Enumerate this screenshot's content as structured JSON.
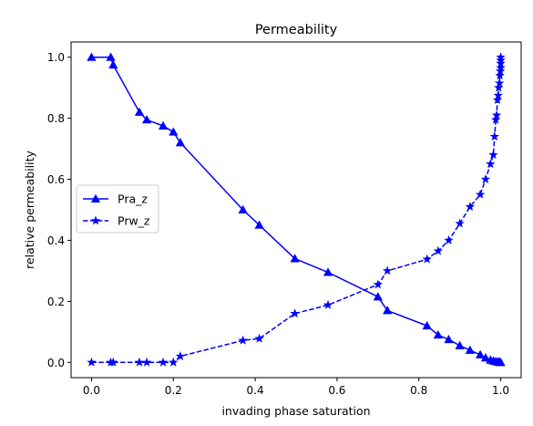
{
  "chart_data": {
    "type": "line",
    "title": "Permeability",
    "xlabel": "invading phase saturation",
    "ylabel": "relative permeability",
    "xlim": [
      -0.05,
      1.05
    ],
    "ylim": [
      -0.05,
      1.05
    ],
    "xticks": [
      "0.0",
      "0.2",
      "0.4",
      "0.6",
      "0.8",
      "1.0"
    ],
    "yticks": [
      "0.0",
      "0.2",
      "0.4",
      "0.6",
      "0.8",
      "1.0"
    ],
    "grid": false,
    "legend_position": "center-left",
    "series": [
      {
        "name": "Pra_z",
        "color": "#0000ff",
        "linestyle": "solid",
        "marker": "triangle-up",
        "x": [
          0.0,
          0.047,
          0.053,
          0.117,
          0.135,
          0.175,
          0.2,
          0.217,
          0.37,
          0.41,
          0.497,
          0.578,
          0.7,
          0.723,
          0.82,
          0.847,
          0.873,
          0.9,
          0.925,
          0.95,
          0.963,
          0.975,
          0.982,
          0.988,
          0.993,
          0.996,
          0.998,
          1.0
        ],
        "y": [
          1.0,
          1.0,
          0.975,
          0.82,
          0.795,
          0.775,
          0.755,
          0.72,
          0.5,
          0.45,
          0.34,
          0.295,
          0.215,
          0.17,
          0.12,
          0.09,
          0.075,
          0.055,
          0.04,
          0.025,
          0.015,
          0.008,
          0.005,
          0.003,
          0.002,
          0.001,
          0.0,
          0.0
        ]
      },
      {
        "name": "Prw_z",
        "color": "#0000ff",
        "linestyle": "dashed",
        "marker": "star",
        "x": [
          0.0,
          0.047,
          0.053,
          0.117,
          0.135,
          0.175,
          0.2,
          0.217,
          0.37,
          0.41,
          0.497,
          0.578,
          0.7,
          0.723,
          0.82,
          0.847,
          0.873,
          0.9,
          0.925,
          0.95,
          0.963,
          0.975,
          0.982,
          0.985,
          0.988,
          0.99,
          0.992,
          0.994,
          0.995,
          0.997,
          0.998,
          0.999,
          1.0,
          1.0,
          1.0,
          1.0
        ],
        "y": [
          0.0,
          0.0,
          0.0,
          0.0,
          0.0,
          0.0,
          0.0,
          0.02,
          0.072,
          0.078,
          0.16,
          0.188,
          0.255,
          0.3,
          0.338,
          0.365,
          0.4,
          0.455,
          0.51,
          0.55,
          0.6,
          0.65,
          0.68,
          0.74,
          0.795,
          0.81,
          0.86,
          0.875,
          0.9,
          0.915,
          0.94,
          0.955,
          0.965,
          0.98,
          0.99,
          1.0
        ]
      }
    ]
  }
}
